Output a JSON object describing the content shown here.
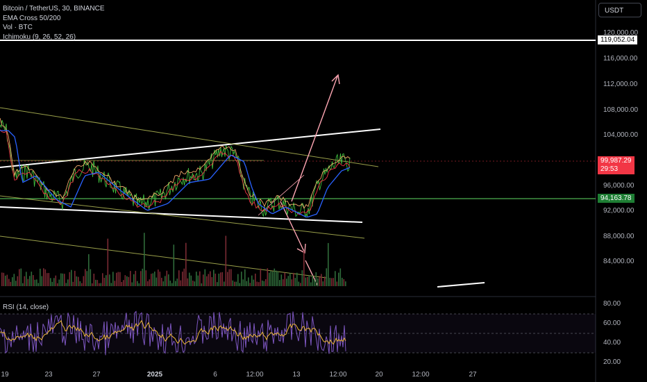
{
  "legend": {
    "symbol": "Bitcoin / TetherUS, 30, BINANCE",
    "indicators": [
      "EMA Cross 50/200",
      "Vol · BTC",
      "Ichimoku (9, 26, 52, 26)"
    ]
  },
  "rsi_legend": "RSI (14, close)",
  "currency_button": "USDT",
  "price_axis": {
    "labels": [
      "120,000.00",
      "116,000.00",
      "112,000.00",
      "108,000.00",
      "104,000.00",
      "96,000.00",
      "92,000.00",
      "88,000.00",
      "84,000.00"
    ]
  },
  "price_tags": {
    "level_high": "119,052.04",
    "current_price": "99,987.29",
    "countdown": "29:53",
    "level_support": "94,163.78"
  },
  "rsi_axis": {
    "labels": [
      "80.00",
      "60.00",
      "40.00",
      "20.00"
    ]
  },
  "time_axis": {
    "labels": [
      "19",
      "23",
      "27",
      "2025",
      "6",
      "12:00",
      "13",
      "12:00",
      "20",
      "12:00",
      "27"
    ],
    "bold_label": "2025"
  },
  "colors": {
    "background": "#000000",
    "candles": "#3fbf3f",
    "ema_fast": "#2962ff",
    "ichimoku_a": "#f0a868",
    "ichimoku_b": "#f23645",
    "trend_white": "#ffffff",
    "trend_olive": "#9aa04a",
    "arrow_pink": "#ffa7b4",
    "rsi": "#7e57c2",
    "rsi_ma": "#f0b93a"
  }
}
